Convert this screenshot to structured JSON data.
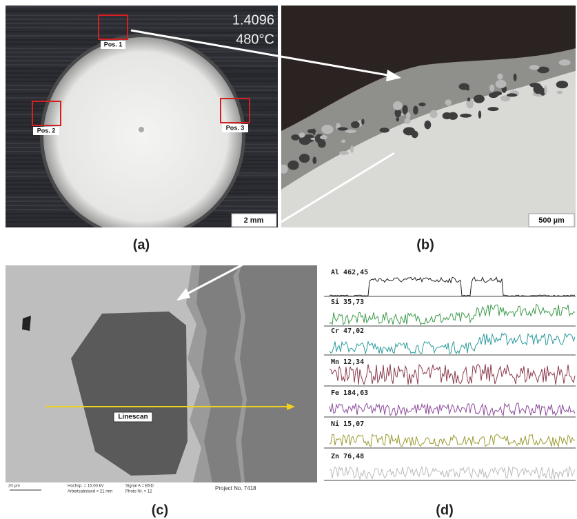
{
  "panels": {
    "a": {
      "label": "(a)",
      "material": "1.4096",
      "temperature": "480°C",
      "positions": [
        "Pos. 1",
        "Pos. 2",
        "Pos. 3"
      ],
      "scale_bar": "2 mm"
    },
    "b": {
      "label": "(b)",
      "scale_bar": "500 µm"
    },
    "c": {
      "label": "(c)",
      "linescan": "Linescan",
      "scale_bar": "20 µm",
      "info": [
        "Hochsp. = 15.00 kV",
        "Arbeitsabstand = 21 mm",
        "Signal A = BSD",
        "Photo Nr. = 12",
        "Project No. 7418"
      ]
    },
    "d": {
      "label": "(d)",
      "elements": [
        "Al 462,45",
        "Si 35,73",
        "Cr 47,02",
        "Mn 12,34",
        "Fe 184,63",
        "Ni 15,07",
        "Zn 76,48"
      ]
    }
  }
}
